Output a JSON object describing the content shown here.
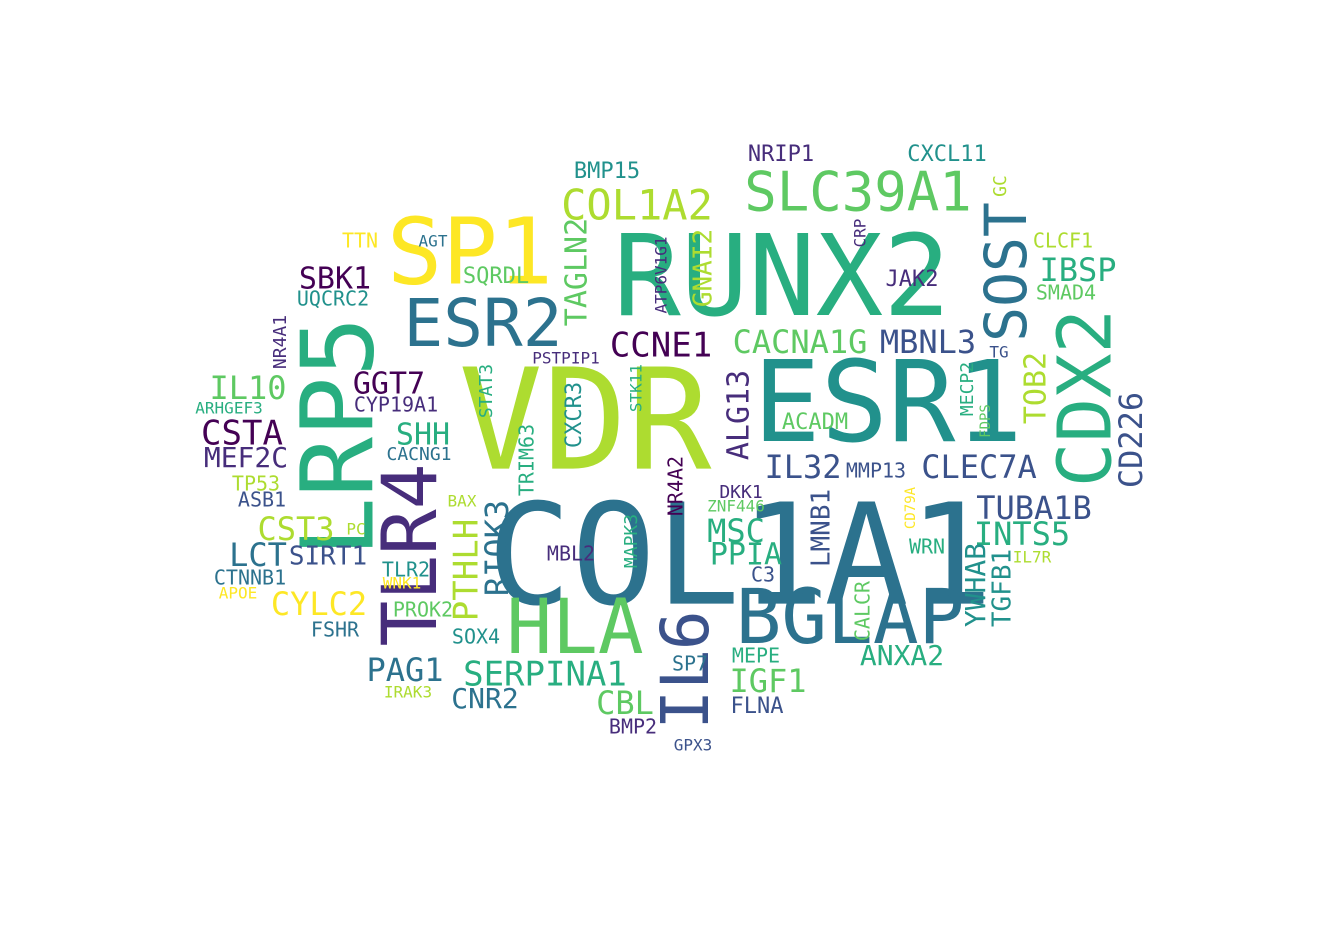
{
  "palette": {
    "purple": "#440154",
    "indigo": "#472d7b",
    "slate": "#3b528b",
    "steel": "#2c728e",
    "teal": "#21918c",
    "green": "#28ae80",
    "lime": "#5ec962",
    "yellowgreen": "#addc30",
    "yellow": "#fde725"
  },
  "words": [
    {
      "text": "COL1A1",
      "color": "steel"
    },
    {
      "text": "VDR",
      "color": "yellowgreen"
    },
    {
      "text": "RUNX2",
      "color": "green"
    },
    {
      "text": "ESR1",
      "color": "teal"
    },
    {
      "text": "LRP5",
      "color": "green"
    },
    {
      "text": "SP1",
      "color": "yellow"
    },
    {
      "text": "BGLAP",
      "color": "steel"
    },
    {
      "text": "HLA",
      "color": "lime"
    },
    {
      "text": "TLR4",
      "color": "indigo"
    },
    {
      "text": "ESR2",
      "color": "steel"
    },
    {
      "text": "CDX2",
      "color": "green"
    },
    {
      "text": "IL6",
      "color": "slate"
    },
    {
      "text": "SLC39A1",
      "color": "lime"
    },
    {
      "text": "SOST",
      "color": "steel"
    },
    {
      "text": "COL1A2",
      "color": "yellowgreen"
    },
    {
      "text": "SERPINA1",
      "color": "green"
    },
    {
      "text": "CACNA1G",
      "color": "lime"
    },
    {
      "text": "MBNL3",
      "color": "slate"
    },
    {
      "text": "CCNE1",
      "color": "purple"
    },
    {
      "text": "CD226",
      "color": "slate"
    },
    {
      "text": "CLEC7A",
      "color": "slate"
    },
    {
      "text": "IL32",
      "color": "slate"
    },
    {
      "text": "TUBA1B",
      "color": "slate"
    },
    {
      "text": "INTS5",
      "color": "green"
    },
    {
      "text": "IBSP",
      "color": "green"
    },
    {
      "text": "ALG13",
      "color": "indigo"
    },
    {
      "text": "TAGLN2",
      "color": "lime"
    },
    {
      "text": "GNAI2",
      "color": "yellowgreen"
    },
    {
      "text": "RIOK3",
      "color": "steel"
    },
    {
      "text": "PTHLH",
      "color": "yellowgreen"
    },
    {
      "text": "CSTA",
      "color": "purple"
    },
    {
      "text": "GGT7",
      "color": "purple"
    },
    {
      "text": "SBK1",
      "color": "purple"
    },
    {
      "text": "MEF2C",
      "color": "indigo"
    },
    {
      "text": "IL10",
      "color": "lime"
    },
    {
      "text": "CST3",
      "color": "yellowgreen"
    },
    {
      "text": "CYLC2",
      "color": "yellow"
    },
    {
      "text": "LCT",
      "color": "steel"
    },
    {
      "text": "SIRT1",
      "color": "slate"
    },
    {
      "text": "PAG1",
      "color": "steel"
    },
    {
      "text": "CNR2",
      "color": "steel"
    },
    {
      "text": "CBL",
      "color": "lime"
    },
    {
      "text": "IGF1",
      "color": "lime"
    },
    {
      "text": "ANXA2",
      "color": "green"
    },
    {
      "text": "MSC",
      "color": "green"
    },
    {
      "text": "PPIA",
      "color": "green"
    },
    {
      "text": "SHH",
      "color": "green"
    },
    {
      "text": "TOB2",
      "color": "yellowgreen"
    },
    {
      "text": "YWHAB",
      "color": "teal"
    },
    {
      "text": "TGFB1",
      "color": "teal"
    },
    {
      "text": "LMNB1",
      "color": "slate"
    },
    {
      "text": "CXCR3",
      "color": "teal"
    },
    {
      "text": "BMP15",
      "color": "teal"
    },
    {
      "text": "NRIP1",
      "color": "indigo"
    },
    {
      "text": "CXCL11",
      "color": "teal"
    },
    {
      "text": "JAK2",
      "color": "indigo"
    },
    {
      "text": "CLCF1",
      "color": "yellowgreen"
    },
    {
      "text": "SMAD4",
      "color": "lime"
    },
    {
      "text": "ACADM",
      "color": "lime"
    },
    {
      "text": "SQRDL",
      "color": "lime"
    },
    {
      "text": "UQCRC2",
      "color": "teal"
    },
    {
      "text": "CYP19A1",
      "color": "indigo"
    },
    {
      "text": "CACNG1",
      "color": "steel"
    },
    {
      "text": "TTN",
      "color": "yellow"
    },
    {
      "text": "AGT",
      "color": "steel"
    },
    {
      "text": "ARHGEF3",
      "color": "green"
    },
    {
      "text": "TP53",
      "color": "yellowgreen"
    },
    {
      "text": "ASB1",
      "color": "slate"
    },
    {
      "text": "PC",
      "color": "yellowgreen"
    },
    {
      "text": "CTNNB1",
      "color": "steel"
    },
    {
      "text": "APOE",
      "color": "yellow"
    },
    {
      "text": "TLR2",
      "color": "teal"
    },
    {
      "text": "WNK1",
      "color": "yellow"
    },
    {
      "text": "FSHR",
      "color": "steel"
    },
    {
      "text": "PROK2",
      "color": "lime"
    },
    {
      "text": "SOX4",
      "color": "teal"
    },
    {
      "text": "IRAK3",
      "color": "yellowgreen"
    },
    {
      "text": "MBL2",
      "color": "indigo"
    },
    {
      "text": "SP7",
      "color": "steel"
    },
    {
      "text": "MEPE",
      "color": "green"
    },
    {
      "text": "FLNA",
      "color": "slate"
    },
    {
      "text": "BMP2",
      "color": "indigo"
    },
    {
      "text": "GPX3",
      "color": "slate"
    },
    {
      "text": "C3",
      "color": "slate"
    },
    {
      "text": "WRN",
      "color": "green"
    },
    {
      "text": "IL7R",
      "color": "yellowgreen"
    },
    {
      "text": "MMP13",
      "color": "slate"
    },
    {
      "text": "DKK1",
      "color": "indigo"
    },
    {
      "text": "ZNF446",
      "color": "lime"
    },
    {
      "text": "BAX",
      "color": "yellowgreen"
    },
    {
      "text": "PSTPIP1",
      "color": "indigo"
    },
    {
      "text": "TG",
      "color": "slate"
    },
    {
      "text": "GC",
      "color": "yellowgreen"
    },
    {
      "text": "CRP",
      "color": "indigo"
    },
    {
      "text": "NR4A1",
      "color": "indigo"
    },
    {
      "text": "STAT3",
      "color": "green"
    },
    {
      "text": "TRIM63",
      "color": "green"
    },
    {
      "text": "STK11",
      "color": "green"
    },
    {
      "text": "ATP6V1G1",
      "color": "indigo"
    },
    {
      "text": "NR4A2",
      "color": "purple"
    },
    {
      "text": "MAPK3",
      "color": "green"
    },
    {
      "text": "CALCR",
      "color": "lime"
    },
    {
      "text": "CD79A",
      "color": "yellow"
    },
    {
      "text": "MECP2",
      "color": "green"
    },
    {
      "text": "FDPS",
      "color": "lime"
    }
  ]
}
